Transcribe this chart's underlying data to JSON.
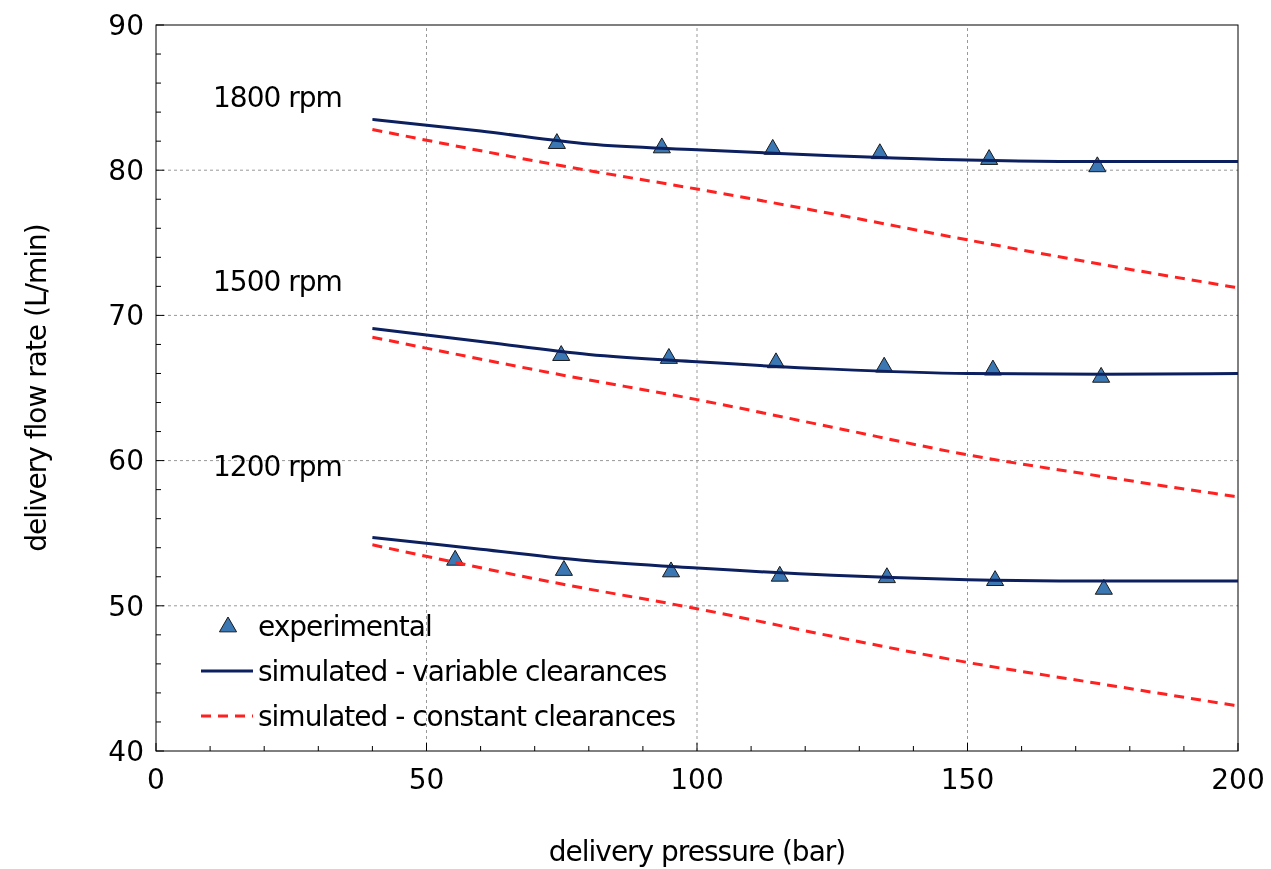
{
  "chart_data": {
    "type": "line",
    "xlabel": "delivery pressure (bar)",
    "ylabel": "delivery flow rate (L/min)",
    "xlim": [
      0,
      200
    ],
    "ylim": [
      40,
      90
    ],
    "xticks": [
      0,
      {
        "value": 10,
        "label": null
      },
      {
        "value": 20,
        "label": null
      },
      {
        "value": 30,
        "label": null
      },
      {
        "value": 40,
        "label": null
      },
      50,
      {
        "value": 60,
        "label": null
      },
      {
        "value": 70,
        "label": null
      },
      {
        "value": 80,
        "label": null
      },
      {
        "value": 90,
        "label": null
      },
      100,
      {
        "value": 110,
        "label": null
      },
      {
        "value": 120,
        "label": null
      },
      {
        "value": 130,
        "label": null
      },
      {
        "value": 140,
        "label": null
      },
      150,
      {
        "value": 160,
        "label": null
      },
      {
        "value": 170,
        "label": null
      },
      {
        "value": 180,
        "label": null
      },
      {
        "value": 190,
        "label": null
      },
      200
    ],
    "yticks": [
      40,
      {
        "value": 42,
        "label": null
      },
      {
        "value": 44,
        "label": null
      },
      {
        "value": 46,
        "label": null
      },
      {
        "value": 48,
        "label": null
      },
      50,
      {
        "value": 52,
        "label": null
      },
      {
        "value": 54,
        "label": null
      },
      {
        "value": 56,
        "label": null
      },
      {
        "value": 58,
        "label": null
      },
      60,
      {
        "value": 62,
        "label": null
      },
      {
        "value": 64,
        "label": null
      },
      {
        "value": 66,
        "label": null
      },
      {
        "value": 68,
        "label": null
      },
      70,
      {
        "value": 72,
        "label": null
      },
      {
        "value": 74,
        "label": null
      },
      {
        "value": 76,
        "label": null
      },
      {
        "value": 78,
        "label": null
      },
      80,
      {
        "value": 82,
        "label": null
      },
      {
        "value": 84,
        "label": null
      },
      {
        "value": 86,
        "label": null
      },
      {
        "value": 88,
        "label": null
      },
      90
    ],
    "grid": true,
    "legend": "bottom left",
    "annotations": [
      "1800 rpm",
      "1500 rpm",
      "1200 rpm"
    ],
    "series": [
      {
        "name": "experimental",
        "type": "scatter",
        "marker": "triangle",
        "color": "#3b78b3",
        "x": [
          74.1,
          93.5,
          114,
          133.8,
          154,
          174
        ],
        "values": [
          81.9,
          81.6,
          81.5,
          81.2,
          80.8,
          80.3
        ]
      },
      {
        "type": "scatter",
        "marker": "triangle",
        "color": "#3b78b3",
        "x": [
          74.9,
          94.8,
          114.6,
          134.6,
          154.7,
          174.7
        ],
        "values": [
          67.3,
          67.1,
          66.8,
          66.5,
          66.3,
          65.8
        ]
      },
      {
        "type": "scatter",
        "marker": "triangle",
        "color": "#3b78b3",
        "x": [
          55.3,
          75.4,
          95.2,
          115.3,
          135.1,
          155.1,
          175.2
        ],
        "values": [
          53.2,
          52.5,
          52.4,
          52.1,
          52.0,
          51.8,
          51.2
        ]
      },
      {
        "name": "simulated - variable clearances",
        "line_style": "solid",
        "color": "#0c1f5e",
        "x": [
          40,
          60,
          80,
          100,
          125,
          150,
          175,
          200
        ],
        "values": [
          83.5,
          82.7,
          81.8,
          81.4,
          81.0,
          80.7,
          80.6,
          80.6
        ]
      },
      {
        "line_style": "solid",
        "color": "#0c1f5e",
        "x": [
          40,
          60,
          80,
          100,
          125,
          150,
          175,
          200
        ],
        "values": [
          69.1,
          68.2,
          67.3,
          66.8,
          66.3,
          66.0,
          65.95,
          66.0
        ]
      },
      {
        "line_style": "solid",
        "color": "#0c1f5e",
        "x": [
          40,
          60,
          80,
          100,
          125,
          150,
          175,
          200
        ],
        "values": [
          54.7,
          53.9,
          53.1,
          52.6,
          52.1,
          51.8,
          51.7,
          51.7
        ]
      },
      {
        "name": "simulated - constant clearances",
        "line_style": "dashed",
        "color": "#ff2020",
        "x": [
          40,
          75,
          100,
          125,
          150,
          175,
          200
        ],
        "values": [
          82.8,
          80.3,
          78.7,
          77.0,
          75.2,
          73.5,
          71.9
        ]
      },
      {
        "line_style": "dashed",
        "color": "#ff2020",
        "x": [
          40,
          75,
          100,
          125,
          150,
          175,
          200
        ],
        "values": [
          68.5,
          65.9,
          64.2,
          62.3,
          60.4,
          58.9,
          57.5
        ]
      },
      {
        "line_style": "dashed",
        "color": "#ff2020",
        "x": [
          40,
          75,
          100,
          125,
          150,
          175,
          200
        ],
        "values": [
          54.2,
          51.5,
          49.8,
          47.9,
          46.1,
          44.6,
          43.1
        ]
      }
    ]
  }
}
